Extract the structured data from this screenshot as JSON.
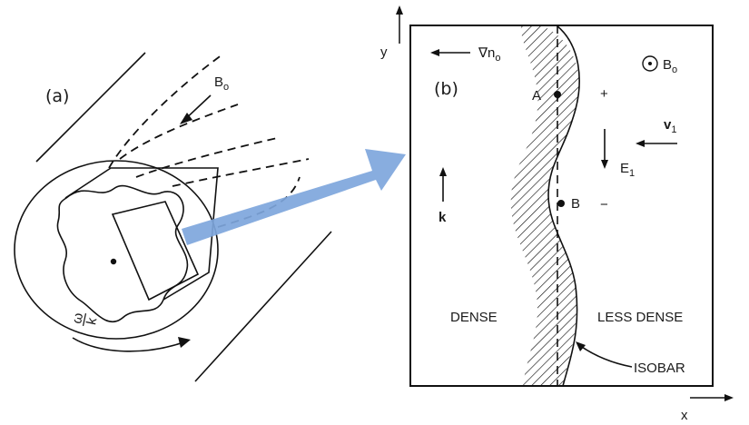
{
  "panel_a": {
    "label": "(a)",
    "field_label": "B",
    "field_sub": "o",
    "omega_num": "ω",
    "omega_den": "k"
  },
  "panel_b": {
    "label": "(b)",
    "axis_y": "y",
    "axis_x": "x",
    "grad_symbol": "∇n",
    "grad_sub": "o",
    "field_label": "B",
    "field_sub": "o",
    "point_a": "A",
    "point_b": "B",
    "plus": "+",
    "minus": "−",
    "velocity_label": "v",
    "velocity_sub": "1",
    "efield_label": "E",
    "efield_sub": "1",
    "k_label": "k",
    "dense_label": "DENSE",
    "less_dense_label": "LESS DENSE",
    "isobar_label": "ISOBAR"
  },
  "colors": {
    "ink": "#111111",
    "arrow": "#7ea6dc"
  }
}
